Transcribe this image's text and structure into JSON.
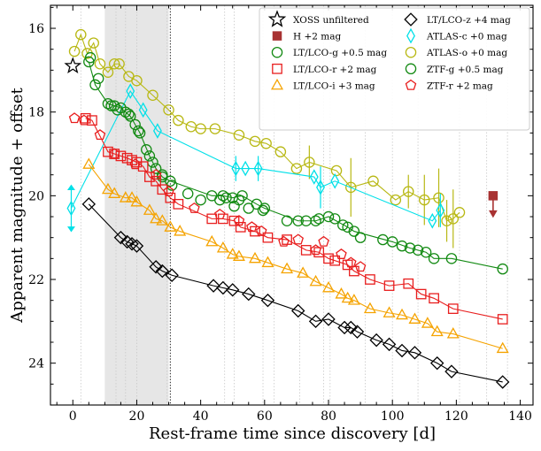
{
  "chart_data": {
    "type": "scatter",
    "xlabel": "Rest-frame time since discovery [d]",
    "ylabel": "Apparent magnitude + offset",
    "xlim": [
      -7,
      144
    ],
    "ylim": [
      25.0,
      15.45
    ],
    "y_inverted": true,
    "xticks": [
      0,
      20,
      40,
      60,
      80,
      100,
      120,
      140
    ],
    "yticks": [
      16,
      18,
      20,
      22,
      24
    ],
    "x_minor_step": 5,
    "y_minor_step": 0.5,
    "grid": false,
    "legend_position": "top-right",
    "shaded_interval": {
      "x": [
        10,
        30
      ],
      "color": "#e6e6e6"
    },
    "vertical_dotted_marker": 30.5,
    "spectral_epochs": [
      2.5,
      13.5,
      16.5,
      20,
      29.5,
      47.5,
      50.5,
      59.5,
      63,
      71,
      78.5,
      80.5,
      91.5,
      100,
      108,
      121,
      129.5,
      136
    ],
    "legend": [
      {
        "label": "XOSS unfiltered",
        "marker": "star",
        "color": "#000000"
      },
      {
        "label": "LT/LCO-z +4 mag",
        "marker": "diamond",
        "color": "#000000"
      },
      {
        "label": "H +2 mag",
        "marker": "filled-square",
        "color": "#a83232"
      },
      {
        "label": "ATLAS-c +0 mag",
        "marker": "thin-diamond",
        "color": "#00e0e8"
      },
      {
        "label": "LT/LCO-g +0.5 mag",
        "marker": "circle",
        "color": "#138a13"
      },
      {
        "label": "ATLAS-o +0 mag",
        "marker": "circle",
        "color": "#b8b814"
      },
      {
        "label": "LT/LCO-r +2 mag",
        "marker": "square",
        "color": "#e81e1e"
      },
      {
        "label": "ZTF-g +0.5 mag",
        "marker": "circle",
        "color": "#138a13"
      },
      {
        "label": "LT/LCO-i +3 mag",
        "marker": "triangle",
        "color": "#f5a300"
      },
      {
        "label": "ZTF-r +2 mag",
        "marker": "pentagon",
        "color": "#e81e1e"
      }
    ],
    "series": [
      {
        "name": "XOSS unfiltered",
        "marker": "star",
        "color": "#000000",
        "line": false,
        "points": [
          [
            0,
            16.9
          ]
        ]
      },
      {
        "name": "H +2 mag",
        "marker": "filled-square",
        "color": "#a83232",
        "line": false,
        "limit_arrow_down": true,
        "points": [
          [
            131.5,
            20.0
          ]
        ]
      },
      {
        "name": "ATLAS-o +0 mag",
        "marker": "circle",
        "color": "#b8b814",
        "line": true,
        "points": [
          [
            0.5,
            16.55
          ],
          [
            2.5,
            16.15
          ],
          [
            4.5,
            16.6
          ],
          [
            6.5,
            16.35
          ],
          [
            8.5,
            16.85
          ],
          [
            11,
            17.05
          ],
          [
            13,
            16.85
          ],
          [
            14.5,
            16.85
          ],
          [
            17.5,
            17.15
          ],
          [
            20,
            17.25
          ],
          [
            25,
            17.6
          ],
          [
            30,
            17.95
          ],
          [
            33,
            18.2
          ],
          [
            37,
            18.35
          ],
          [
            40,
            18.4
          ],
          [
            44.5,
            18.4
          ],
          [
            52,
            18.55
          ],
          [
            57,
            18.7
          ],
          [
            60.5,
            18.75
          ],
          [
            65,
            18.95
          ],
          [
            70,
            19.35
          ],
          [
            74,
            19.2
          ],
          [
            82.5,
            19.4
          ],
          [
            87,
            19.8
          ],
          [
            94,
            19.65
          ],
          [
            101,
            20.1
          ],
          [
            105,
            19.9
          ],
          [
            110,
            20.1
          ],
          [
            114.5,
            20.05
          ],
          [
            117,
            20.6
          ],
          [
            119,
            20.55
          ],
          [
            121,
            20.4
          ]
        ],
        "errors": [
          [
            71,
            0.5
          ],
          [
            74,
            0.4
          ],
          [
            87,
            0.7
          ],
          [
            105,
            0.4
          ],
          [
            110,
            0.6
          ],
          [
            114.5,
            0.7
          ],
          [
            117,
            0.5
          ],
          [
            119,
            0.7
          ]
        ]
      },
      {
        "name": "ATLAS-c +0 mag",
        "marker": "thin-diamond",
        "color": "#00e0e8",
        "line": true,
        "points": [
          [
            -0.5,
            20.3
          ],
          [
            18,
            17.5
          ],
          [
            22,
            17.95
          ],
          [
            26.5,
            18.45
          ],
          [
            51,
            19.35
          ],
          [
            54,
            19.35
          ],
          [
            58,
            19.35
          ],
          [
            75.5,
            19.55
          ],
          [
            77.5,
            19.8
          ],
          [
            82,
            19.65
          ],
          [
            112.5,
            20.6
          ],
          [
            115,
            20.35
          ]
        ],
        "errors": [
          [
            -0.5,
            0.55
          ],
          [
            51,
            0.3
          ],
          [
            58,
            0.3
          ],
          [
            77.5,
            0.5
          ],
          [
            115,
            0.4
          ]
        ]
      },
      {
        "name": "LT/LCO-g +0.5 mag",
        "marker": "circle",
        "color": "#138a13",
        "line": true,
        "points": [
          [
            5,
            16.8
          ],
          [
            7,
            17.35
          ],
          [
            11,
            17.8
          ],
          [
            13,
            17.85
          ],
          [
            15,
            17.9
          ],
          [
            16.5,
            18.0
          ],
          [
            18,
            18.1
          ],
          [
            19.5,
            18.3
          ],
          [
            21,
            18.5
          ],
          [
            24,
            19.05
          ],
          [
            26,
            19.35
          ],
          [
            28,
            19.55
          ],
          [
            30.5,
            19.65
          ],
          [
            43.5,
            20.0
          ],
          [
            47,
            20.0
          ],
          [
            50,
            20.05
          ],
          [
            53,
            20.0
          ],
          [
            57.5,
            20.2
          ],
          [
            60,
            20.3
          ],
          [
            70.5,
            20.6
          ],
          [
            76,
            20.6
          ],
          [
            80,
            20.5
          ],
          [
            86,
            20.75
          ],
          [
            88,
            20.85
          ],
          [
            100,
            21.1
          ],
          [
            105.5,
            21.25
          ],
          [
            110.5,
            21.35
          ],
          [
            113,
            21.5
          ],
          [
            118.5,
            21.5
          ],
          [
            134.5,
            21.75
          ]
        ]
      },
      {
        "name": "ZTF-g +0.5 mag",
        "marker": "circle",
        "color": "#138a13",
        "line": false,
        "points": [
          [
            5.5,
            16.7
          ],
          [
            8,
            17.2
          ],
          [
            12,
            17.85
          ],
          [
            14,
            17.95
          ],
          [
            17.5,
            18.05
          ],
          [
            20.5,
            18.45
          ],
          [
            23,
            18.9
          ],
          [
            25,
            19.2
          ],
          [
            28,
            19.5
          ],
          [
            31,
            19.75
          ],
          [
            36,
            19.95
          ],
          [
            40,
            20.1
          ],
          [
            46,
            20.1
          ],
          [
            48,
            20.05
          ],
          [
            50.5,
            20.25
          ],
          [
            52,
            20.1
          ],
          [
            55,
            20.3
          ],
          [
            59.5,
            20.35
          ],
          [
            67,
            20.6
          ],
          [
            73,
            20.6
          ],
          [
            77,
            20.55
          ],
          [
            82,
            20.55
          ],
          [
            84.5,
            20.7
          ],
          [
            90,
            21.0
          ],
          [
            97,
            21.05
          ],
          [
            103,
            21.2
          ],
          [
            108,
            21.3
          ]
        ]
      },
      {
        "name": "LT/LCO-r +2 mag",
        "marker": "square",
        "color": "#e81e1e",
        "line": true,
        "points": [
          [
            4,
            18.15
          ],
          [
            6,
            18.2
          ],
          [
            11,
            18.95
          ],
          [
            13,
            19.0
          ],
          [
            15,
            19.05
          ],
          [
            17,
            19.1
          ],
          [
            18.5,
            19.15
          ],
          [
            20,
            19.2
          ],
          [
            22,
            19.3
          ],
          [
            24,
            19.55
          ],
          [
            26,
            19.65
          ],
          [
            28,
            19.85
          ],
          [
            30.5,
            20.05
          ],
          [
            33,
            20.2
          ],
          [
            43.5,
            20.55
          ],
          [
            47,
            20.55
          ],
          [
            50.5,
            20.6
          ],
          [
            52.5,
            20.75
          ],
          [
            57,
            20.85
          ],
          [
            61,
            21.0
          ],
          [
            67,
            21.05
          ],
          [
            73,
            21.3
          ],
          [
            77,
            21.35
          ],
          [
            80,
            21.5
          ],
          [
            82,
            21.55
          ],
          [
            86,
            21.65
          ],
          [
            88,
            21.8
          ],
          [
            93,
            22.0
          ],
          [
            99,
            22.15
          ],
          [
            105,
            22.1
          ],
          [
            109,
            22.35
          ],
          [
            113,
            22.45
          ],
          [
            119,
            22.7
          ],
          [
            134.5,
            22.95
          ]
        ]
      },
      {
        "name": "ZTF-r +2 mag",
        "marker": "pentagon",
        "color": "#e81e1e",
        "line": false,
        "points": [
          [
            0.5,
            18.15
          ],
          [
            3.5,
            18.2
          ],
          [
            8.5,
            18.55
          ],
          [
            13,
            19.0
          ],
          [
            19.5,
            19.25
          ],
          [
            26,
            19.5
          ],
          [
            30,
            19.9
          ],
          [
            38,
            20.3
          ],
          [
            46,
            20.45
          ],
          [
            52,
            20.6
          ],
          [
            56,
            20.75
          ],
          [
            59,
            20.85
          ],
          [
            66,
            21.1
          ],
          [
            70.5,
            21.05
          ],
          [
            76,
            21.3
          ],
          [
            78.5,
            21.1
          ],
          [
            84,
            21.4
          ],
          [
            87,
            21.6
          ],
          [
            90,
            21.7
          ]
        ]
      },
      {
        "name": "LT/LCO-i +3 mag",
        "marker": "triangle",
        "color": "#f5a300",
        "line": true,
        "points": [
          [
            5,
            19.25
          ],
          [
            11,
            19.85
          ],
          [
            13,
            19.95
          ],
          [
            16.5,
            20.05
          ],
          [
            18.5,
            20.05
          ],
          [
            20,
            20.15
          ],
          [
            24,
            20.35
          ],
          [
            26,
            20.55
          ],
          [
            28,
            20.6
          ],
          [
            30.5,
            20.75
          ],
          [
            33.5,
            20.85
          ],
          [
            43.5,
            21.1
          ],
          [
            47,
            21.25
          ],
          [
            50,
            21.4
          ],
          [
            52,
            21.45
          ],
          [
            57,
            21.5
          ],
          [
            61,
            21.6
          ],
          [
            67,
            21.75
          ],
          [
            72,
            21.85
          ],
          [
            76,
            22.05
          ],
          [
            80,
            22.2
          ],
          [
            84,
            22.35
          ],
          [
            86,
            22.45
          ],
          [
            88,
            22.5
          ],
          [
            93,
            22.7
          ],
          [
            99,
            22.8
          ],
          [
            103,
            22.85
          ],
          [
            107,
            22.95
          ],
          [
            111,
            23.05
          ],
          [
            114,
            23.25
          ],
          [
            119,
            23.3
          ],
          [
            134.5,
            23.65
          ]
        ]
      },
      {
        "name": "LT/LCO-z +4 mag",
        "marker": "diamond",
        "color": "#000000",
        "line": true,
        "points": [
          [
            5,
            20.2
          ],
          [
            15,
            21.0
          ],
          [
            17,
            21.1
          ],
          [
            18.5,
            21.15
          ],
          [
            20,
            21.2
          ],
          [
            26,
            21.7
          ],
          [
            28,
            21.8
          ],
          [
            31,
            21.9
          ],
          [
            44,
            22.15
          ],
          [
            47,
            22.2
          ],
          [
            50,
            22.25
          ],
          [
            55,
            22.35
          ],
          [
            61,
            22.5
          ],
          [
            70.5,
            22.75
          ],
          [
            76,
            23.0
          ],
          [
            80,
            22.95
          ],
          [
            85,
            23.15
          ],
          [
            87,
            23.15
          ],
          [
            89,
            23.25
          ],
          [
            95,
            23.45
          ],
          [
            99,
            23.55
          ],
          [
            103,
            23.7
          ],
          [
            107,
            23.75
          ],
          [
            114,
            24.0
          ],
          [
            118.5,
            24.2
          ],
          [
            134.5,
            24.45
          ]
        ]
      }
    ]
  }
}
